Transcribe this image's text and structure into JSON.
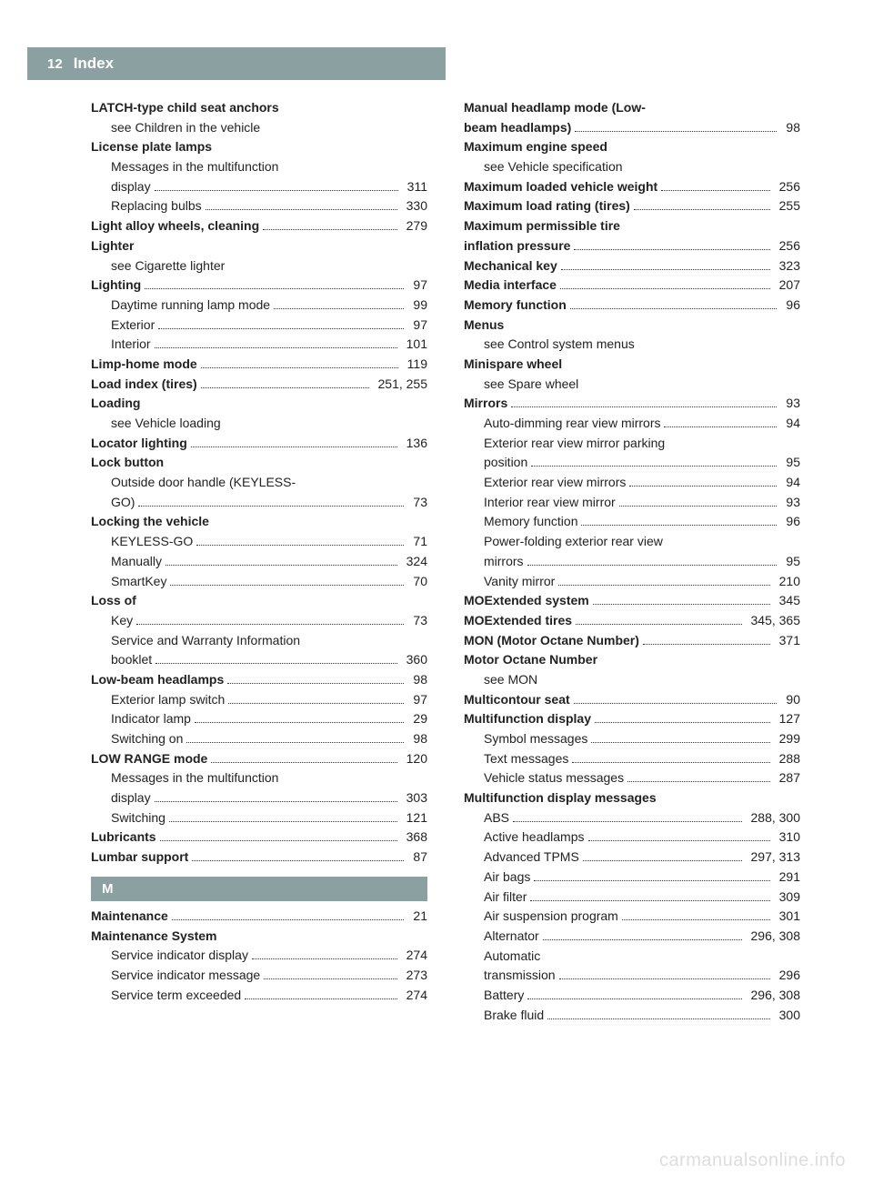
{
  "header": {
    "page_number": "12",
    "title": "Index"
  },
  "watermark": "carmanualsonline.info",
  "colors": {
    "tab_bg": "#8ba0a0",
    "tab_fg": "#ffffff",
    "text": "#222222",
    "watermark": "#dddddd"
  },
  "columns": {
    "left": [
      {
        "type": "entry",
        "bold": true,
        "indent": 0,
        "label": "LATCH-type child seat anchors"
      },
      {
        "type": "entry",
        "indent": 1,
        "label": "see Children in the vehicle"
      },
      {
        "type": "entry",
        "bold": true,
        "indent": 0,
        "label": "License plate lamps"
      },
      {
        "type": "entry",
        "indent": 1,
        "label": "Messages in the multifunction"
      },
      {
        "type": "entry",
        "indent": 1,
        "label": "display",
        "page": "311"
      },
      {
        "type": "entry",
        "indent": 1,
        "label": "Replacing bulbs",
        "page": "330"
      },
      {
        "type": "entry",
        "bold": true,
        "indent": 0,
        "label": "Light alloy wheels, cleaning",
        "page": "279"
      },
      {
        "type": "entry",
        "bold": true,
        "indent": 0,
        "label": "Lighter"
      },
      {
        "type": "entry",
        "indent": 1,
        "label": "see Cigarette lighter"
      },
      {
        "type": "entry",
        "bold": true,
        "indent": 0,
        "label": "Lighting",
        "page": "97"
      },
      {
        "type": "entry",
        "indent": 1,
        "label": "Daytime running lamp mode",
        "page": "99"
      },
      {
        "type": "entry",
        "indent": 1,
        "label": "Exterior",
        "page": "97"
      },
      {
        "type": "entry",
        "indent": 1,
        "label": "Interior",
        "page": "101"
      },
      {
        "type": "entry",
        "bold": true,
        "indent": 0,
        "label": "Limp-home mode",
        "page": "119"
      },
      {
        "type": "entry",
        "bold": true,
        "indent": 0,
        "label": "Load index (tires)",
        "page": "251, 255"
      },
      {
        "type": "entry",
        "bold": true,
        "indent": 0,
        "label": "Loading"
      },
      {
        "type": "entry",
        "indent": 1,
        "label": "see Vehicle loading"
      },
      {
        "type": "entry",
        "bold": true,
        "indent": 0,
        "label": "Locator lighting",
        "page": "136"
      },
      {
        "type": "entry",
        "bold": true,
        "indent": 0,
        "label": "Lock button"
      },
      {
        "type": "entry",
        "indent": 1,
        "label": "Outside door handle (KEYLESS-"
      },
      {
        "type": "entry",
        "indent": 1,
        "label": "GO)",
        "page": "73"
      },
      {
        "type": "entry",
        "bold": true,
        "indent": 0,
        "label": "Locking the vehicle"
      },
      {
        "type": "entry",
        "indent": 1,
        "label": "KEYLESS-GO",
        "page": "71"
      },
      {
        "type": "entry",
        "indent": 1,
        "label": "Manually",
        "page": "324"
      },
      {
        "type": "entry",
        "indent": 1,
        "label": "SmartKey",
        "page": "70"
      },
      {
        "type": "entry",
        "bold": true,
        "indent": 0,
        "label": "Loss of"
      },
      {
        "type": "entry",
        "indent": 1,
        "label": "Key",
        "page": "73"
      },
      {
        "type": "entry",
        "indent": 1,
        "label": "Service and Warranty Information"
      },
      {
        "type": "entry",
        "indent": 1,
        "label": "booklet",
        "page": "360"
      },
      {
        "type": "entry",
        "bold": true,
        "indent": 0,
        "label": "Low-beam headlamps",
        "page": "98"
      },
      {
        "type": "entry",
        "indent": 1,
        "label": "Exterior lamp switch",
        "page": "97"
      },
      {
        "type": "entry",
        "indent": 1,
        "label": "Indicator lamp",
        "page": "29"
      },
      {
        "type": "entry",
        "indent": 1,
        "label": "Switching on",
        "page": "98"
      },
      {
        "type": "entry",
        "bold": true,
        "indent": 0,
        "label": "LOW RANGE mode",
        "page": "120"
      },
      {
        "type": "entry",
        "indent": 1,
        "label": "Messages in the multifunction"
      },
      {
        "type": "entry",
        "indent": 1,
        "label": "display",
        "page": "303"
      },
      {
        "type": "entry",
        "indent": 1,
        "label": "Switching",
        "page": "121"
      },
      {
        "type": "entry",
        "bold": true,
        "indent": 0,
        "label": "Lubricants",
        "page": "368"
      },
      {
        "type": "entry",
        "bold": true,
        "indent": 0,
        "label": "Lumbar support",
        "page": "87"
      },
      {
        "type": "section",
        "label": "M"
      },
      {
        "type": "entry",
        "bold": true,
        "indent": 0,
        "label": "Maintenance",
        "page": "21"
      },
      {
        "type": "entry",
        "bold": true,
        "indent": 0,
        "label": "Maintenance System"
      },
      {
        "type": "entry",
        "indent": 1,
        "label": "Service indicator display",
        "page": "274"
      },
      {
        "type": "entry",
        "indent": 1,
        "label": "Service indicator message",
        "page": "273"
      },
      {
        "type": "entry",
        "indent": 1,
        "label": "Service term exceeded",
        "page": "274"
      }
    ],
    "right": [
      {
        "type": "entry",
        "bold": true,
        "indent": 0,
        "label": "Manual headlamp mode (Low-"
      },
      {
        "type": "entry",
        "bold": true,
        "indent": 0,
        "label": "beam headlamps)",
        "page": "98"
      },
      {
        "type": "entry",
        "bold": true,
        "indent": 0,
        "label": "Maximum engine speed"
      },
      {
        "type": "entry",
        "indent": 1,
        "label": "see Vehicle specification"
      },
      {
        "type": "entry",
        "bold": true,
        "indent": 0,
        "label": "Maximum loaded vehicle weight",
        "page": "256"
      },
      {
        "type": "entry",
        "bold": true,
        "indent": 0,
        "label": "Maximum load rating (tires)",
        "page": "255"
      },
      {
        "type": "entry",
        "bold": true,
        "indent": 0,
        "label": "Maximum permissible tire"
      },
      {
        "type": "entry",
        "bold": true,
        "indent": 0,
        "label": "inflation pressure",
        "page": "256"
      },
      {
        "type": "entry",
        "bold": true,
        "indent": 0,
        "label": "Mechanical key",
        "page": "323"
      },
      {
        "type": "entry",
        "bold": true,
        "indent": 0,
        "label": "Media interface",
        "page": "207"
      },
      {
        "type": "entry",
        "bold": true,
        "indent": 0,
        "label": "Memory function",
        "page": "96"
      },
      {
        "type": "entry",
        "bold": true,
        "indent": 0,
        "label": "Menus"
      },
      {
        "type": "entry",
        "indent": 1,
        "label": "see Control system menus"
      },
      {
        "type": "entry",
        "bold": true,
        "indent": 0,
        "label": "Minispare wheel"
      },
      {
        "type": "entry",
        "indent": 1,
        "label": "see Spare wheel"
      },
      {
        "type": "entry",
        "bold": true,
        "indent": 0,
        "label": "Mirrors",
        "page": "93"
      },
      {
        "type": "entry",
        "indent": 1,
        "label": "Auto-dimming rear view mirrors",
        "page": "94"
      },
      {
        "type": "entry",
        "indent": 1,
        "label": "Exterior rear view mirror parking"
      },
      {
        "type": "entry",
        "indent": 1,
        "label": "position",
        "page": "95"
      },
      {
        "type": "entry",
        "indent": 1,
        "label": "Exterior rear view mirrors",
        "page": "94"
      },
      {
        "type": "entry",
        "indent": 1,
        "label": "Interior rear view mirror",
        "page": "93"
      },
      {
        "type": "entry",
        "indent": 1,
        "label": "Memory function",
        "page": "96"
      },
      {
        "type": "entry",
        "indent": 1,
        "label": "Power-folding exterior rear view"
      },
      {
        "type": "entry",
        "indent": 1,
        "label": "mirrors",
        "page": "95"
      },
      {
        "type": "entry",
        "indent": 1,
        "label": "Vanity mirror",
        "page": "210"
      },
      {
        "type": "entry",
        "bold": true,
        "indent": 0,
        "label": "MOExtended system",
        "page": "345"
      },
      {
        "type": "entry",
        "bold": true,
        "indent": 0,
        "label": "MOExtended tires",
        "page": "345, 365"
      },
      {
        "type": "entry",
        "bold": true,
        "indent": 0,
        "label": "MON (Motor Octane Number)",
        "page": "371"
      },
      {
        "type": "entry",
        "bold": true,
        "indent": 0,
        "label": "Motor Octane Number"
      },
      {
        "type": "entry",
        "indent": 1,
        "label": "see MON"
      },
      {
        "type": "entry",
        "bold": true,
        "indent": 0,
        "label": "Multicontour seat",
        "page": "90"
      },
      {
        "type": "entry",
        "bold": true,
        "indent": 0,
        "label": "Multifunction display",
        "page": "127"
      },
      {
        "type": "entry",
        "indent": 1,
        "label": "Symbol messages",
        "page": "299"
      },
      {
        "type": "entry",
        "indent": 1,
        "label": "Text messages",
        "page": "288"
      },
      {
        "type": "entry",
        "indent": 1,
        "label": "Vehicle status messages",
        "page": "287"
      },
      {
        "type": "entry",
        "bold": true,
        "indent": 0,
        "label": "Multifunction display messages"
      },
      {
        "type": "entry",
        "indent": 1,
        "label": "ABS",
        "page": "288, 300"
      },
      {
        "type": "entry",
        "indent": 1,
        "label": "Active headlamps",
        "page": "310"
      },
      {
        "type": "entry",
        "indent": 1,
        "label": "Advanced TPMS",
        "page": "297, 313"
      },
      {
        "type": "entry",
        "indent": 1,
        "label": "Air bags",
        "page": "291"
      },
      {
        "type": "entry",
        "indent": 1,
        "label": "Air filter",
        "page": "309"
      },
      {
        "type": "entry",
        "indent": 1,
        "label": "Air suspension program",
        "page": "301"
      },
      {
        "type": "entry",
        "indent": 1,
        "label": "Alternator",
        "page": "296, 308"
      },
      {
        "type": "entry",
        "indent": 1,
        "label": "Automatic"
      },
      {
        "type": "entry",
        "indent": 1,
        "label": "transmission",
        "page": "296"
      },
      {
        "type": "entry",
        "indent": 1,
        "label": "Battery",
        "page": "296, 308"
      },
      {
        "type": "entry",
        "indent": 1,
        "label": "Brake fluid",
        "page": "300"
      }
    ]
  }
}
